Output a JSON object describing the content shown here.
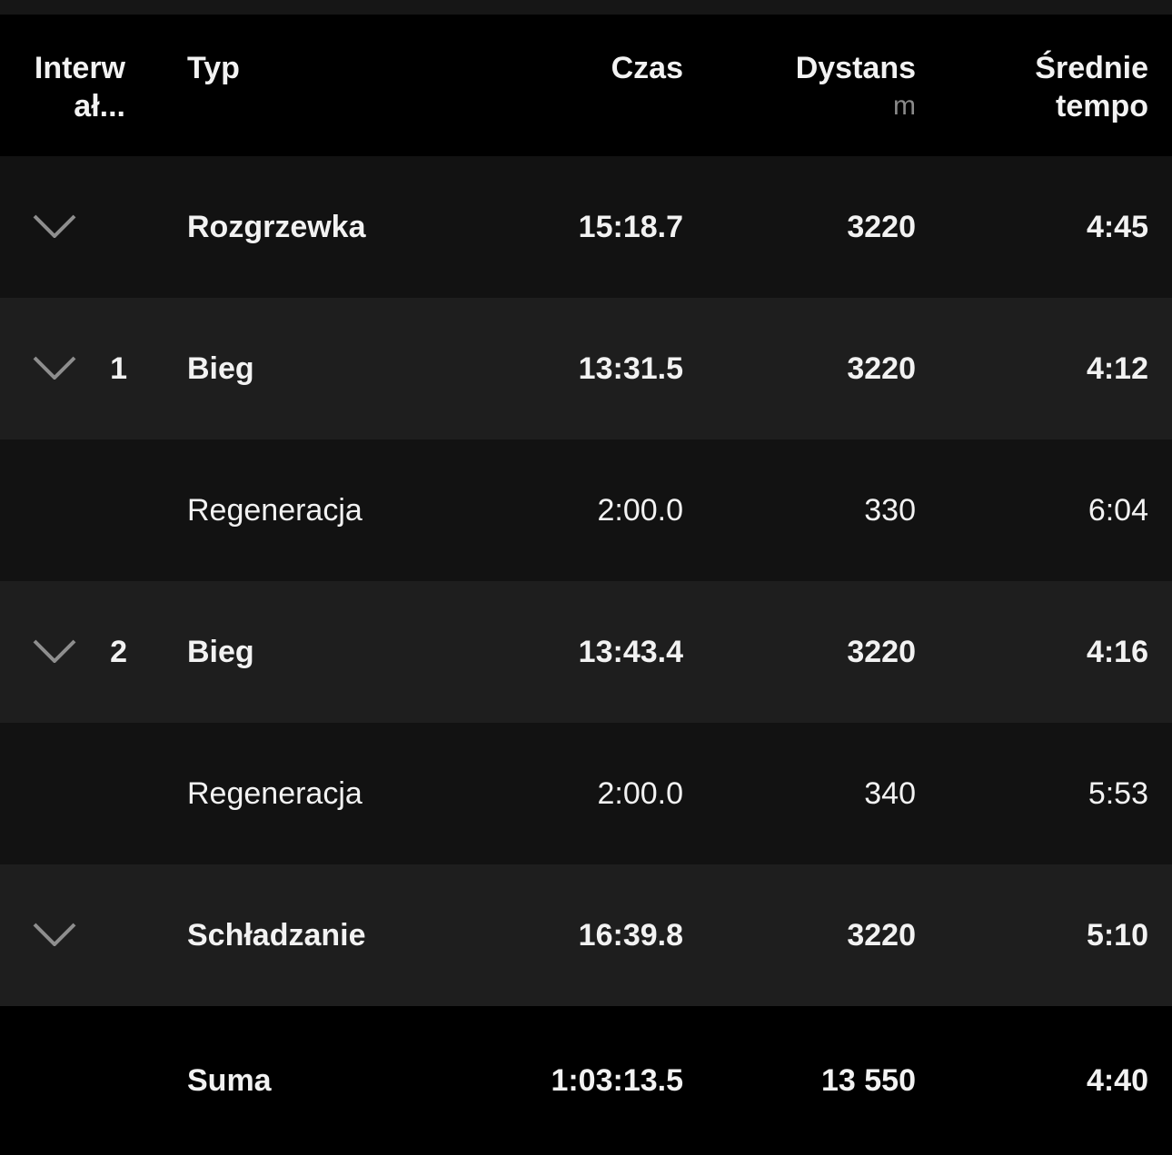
{
  "header": {
    "interval": "Interw ał...",
    "type": "Typ",
    "time": "Czas",
    "distance": "Dystans",
    "distance_unit": "m",
    "pace": "Średnie tempo"
  },
  "rows": [
    {
      "num": "",
      "type": "Rozgrzewka",
      "time": "15:18.7",
      "distance": "3220",
      "pace": "4:45",
      "expandable": true
    },
    {
      "num": "1",
      "type": "Bieg",
      "time": "13:31.5",
      "distance": "3220",
      "pace": "4:12",
      "expandable": true
    },
    {
      "num": "",
      "type": "Regeneracja",
      "time": "2:00.0",
      "distance": "330",
      "pace": "6:04",
      "expandable": false
    },
    {
      "num": "2",
      "type": "Bieg",
      "time": "13:43.4",
      "distance": "3220",
      "pace": "4:16",
      "expandable": true
    },
    {
      "num": "",
      "type": "Regeneracja",
      "time": "2:00.0",
      "distance": "340",
      "pace": "5:53",
      "expandable": false
    },
    {
      "num": "",
      "type": "Schładzanie",
      "time": "16:39.8",
      "distance": "3220",
      "pace": "5:10",
      "expandable": true
    }
  ],
  "total": {
    "label": "Suma",
    "time": "1:03:13.5",
    "distance": "13 550",
    "pace": "4:40"
  }
}
